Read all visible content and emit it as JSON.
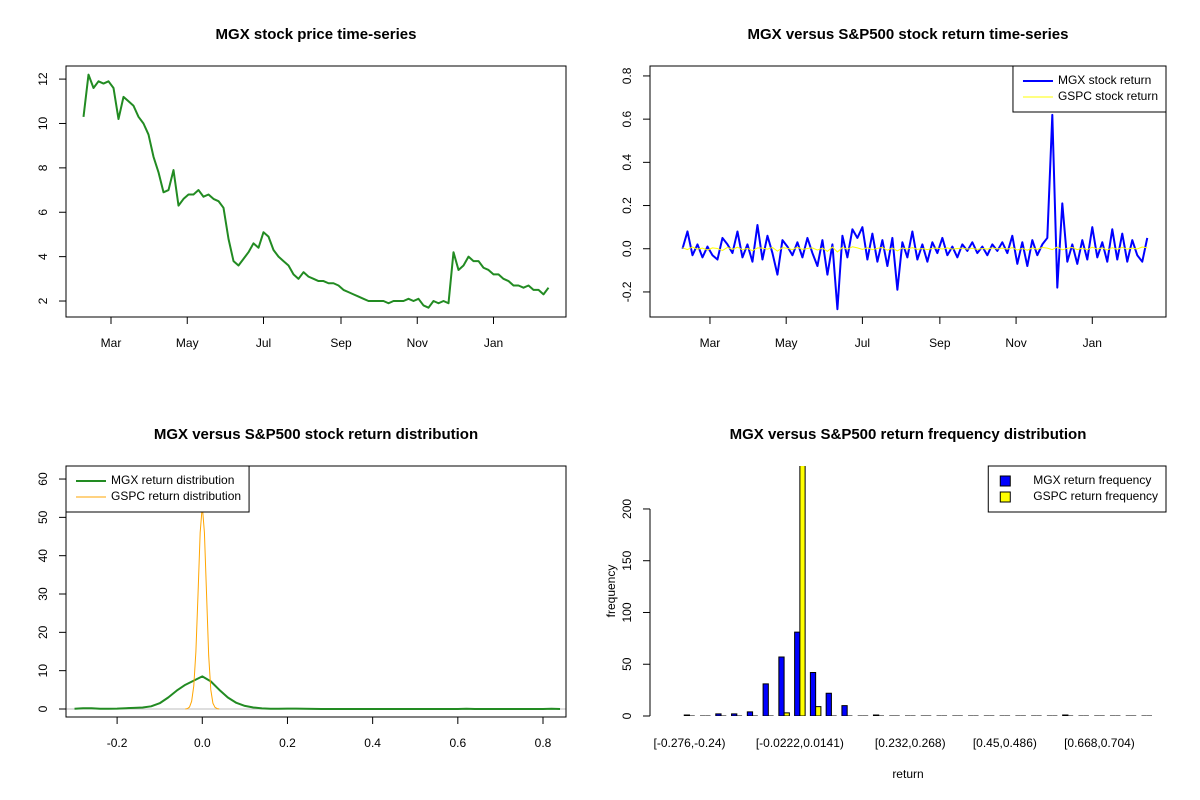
{
  "chart_data": [
    {
      "type": "line",
      "title": "MGX stock price time-series",
      "color": "#228b22",
      "x": [
        -22,
        -18,
        -14,
        -10,
        -6,
        -2,
        2,
        6,
        10,
        14,
        18,
        22,
        26,
        30,
        34,
        38,
        42,
        46,
        50,
        54,
        58,
        62,
        66,
        70,
        74,
        78,
        82,
        86,
        90,
        94,
        98,
        102,
        106,
        110,
        114,
        118,
        122,
        126,
        130,
        134,
        138,
        142,
        146,
        150,
        154,
        158,
        162,
        166,
        170,
        174,
        178,
        182,
        186,
        190,
        194,
        198,
        202,
        206,
        210,
        214,
        218,
        222,
        226,
        230,
        234,
        238,
        242,
        246,
        250,
        254,
        258,
        262,
        266,
        270,
        274,
        278,
        282,
        286,
        290,
        294,
        298,
        302,
        306,
        310,
        314,
        318,
        322,
        326,
        330,
        334,
        338,
        342,
        346,
        350
      ],
      "values": [
        10.3,
        12.2,
        11.6,
        11.9,
        11.8,
        11.9,
        11.6,
        10.2,
        11.2,
        11.0,
        10.8,
        10.3,
        10.0,
        9.5,
        8.5,
        7.8,
        6.9,
        7.0,
        7.9,
        6.3,
        6.6,
        6.8,
        6.8,
        7.0,
        6.7,
        6.8,
        6.6,
        6.5,
        6.2,
        4.8,
        3.8,
        3.6,
        3.9,
        4.2,
        4.6,
        4.4,
        5.1,
        4.9,
        4.3,
        4.0,
        3.8,
        3.6,
        3.2,
        3.0,
        3.3,
        3.1,
        3.0,
        2.9,
        2.9,
        2.8,
        2.8,
        2.7,
        2.5,
        2.4,
        2.3,
        2.2,
        2.1,
        2.0,
        2.0,
        2.0,
        2.0,
        1.9,
        2.0,
        2.0,
        2.0,
        2.1,
        2.0,
        2.1,
        1.8,
        1.7,
        2.0,
        1.9,
        2.0,
        1.9,
        4.2,
        3.4,
        3.6,
        4.0,
        3.8,
        3.8,
        3.5,
        3.4,
        3.2,
        3.2,
        3.0,
        2.9,
        2.7,
        2.7,
        2.6,
        2.7,
        2.5,
        2.5,
        2.3,
        2.6
      ],
      "xlim": [
        -36,
        364
      ],
      "xticks": [
        {
          "value": 0,
          "label": "Mar"
        },
        {
          "value": 61,
          "label": "May"
        },
        {
          "value": 122,
          "label": "Jul"
        },
        {
          "value": 184,
          "label": "Sep"
        },
        {
          "value": 245,
          "label": "Nov"
        },
        {
          "value": 306,
          "label": "Jan"
        }
      ],
      "ylim": [
        1.28,
        12.59
      ],
      "yticks": [
        2,
        4,
        6,
        8,
        10,
        12
      ]
    },
    {
      "type": "line",
      "title": "MGX versus S&P500 stock return time-series",
      "legend": "topright",
      "x": [
        -22,
        -18,
        -14,
        -10,
        -6,
        -2,
        2,
        6,
        10,
        14,
        18,
        22,
        26,
        30,
        34,
        38,
        42,
        46,
        50,
        54,
        58,
        62,
        66,
        70,
        74,
        78,
        82,
        86,
        90,
        94,
        98,
        102,
        106,
        110,
        114,
        118,
        122,
        126,
        130,
        134,
        138,
        142,
        146,
        150,
        154,
        158,
        162,
        166,
        170,
        174,
        178,
        182,
        186,
        190,
        194,
        198,
        202,
        206,
        210,
        214,
        218,
        222,
        226,
        230,
        234,
        238,
        242,
        246,
        250,
        254,
        258,
        262,
        266,
        270,
        274,
        278,
        282,
        286,
        290,
        294,
        298,
        302,
        306,
        310,
        314,
        318,
        322,
        326,
        330,
        334,
        338,
        342,
        346,
        350
      ],
      "series": [
        {
          "name": "MGX stock return",
          "color": "#0000ff",
          "values": [
            0.0,
            0.08,
            -0.03,
            0.02,
            -0.04,
            0.01,
            -0.03,
            -0.05,
            0.05,
            0.02,
            -0.02,
            0.08,
            -0.04,
            0.02,
            -0.06,
            0.11,
            -0.05,
            0.06,
            -0.02,
            -0.12,
            0.04,
            0.01,
            -0.03,
            0.03,
            -0.04,
            0.05,
            -0.02,
            -0.08,
            0.04,
            -0.12,
            0.02,
            -0.28,
            0.06,
            -0.04,
            0.09,
            0.05,
            0.1,
            -0.05,
            0.07,
            -0.06,
            0.04,
            -0.08,
            0.05,
            -0.19,
            0.03,
            -0.04,
            0.08,
            -0.05,
            0.02,
            -0.06,
            0.03,
            -0.02,
            0.05,
            -0.03,
            0.01,
            -0.04,
            0.02,
            -0.01,
            0.03,
            -0.02,
            0.01,
            -0.03,
            0.02,
            -0.01,
            0.03,
            -0.02,
            0.06,
            -0.07,
            0.03,
            -0.08,
            0.04,
            -0.03,
            0.02,
            0.05,
            0.62,
            -0.18,
            0.21,
            -0.06,
            0.02,
            -0.07,
            0.04,
            -0.05,
            0.1,
            -0.04,
            0.03,
            -0.06,
            0.09,
            -0.05,
            0.07,
            -0.06,
            0.04,
            -0.03,
            -0.06,
            0.05
          ]
        },
        {
          "name": "GSPC stock return",
          "color": "#ffff00",
          "values": [
            0.005,
            -0.004,
            0.008,
            -0.002,
            0.003,
            -0.006,
            0.004,
            0.001,
            -0.008,
            0.006,
            -0.003,
            0.007,
            -0.005,
            0.002,
            -0.009,
            0.004,
            0.003,
            -0.002,
            0.006,
            -0.011,
            0.005,
            0.002,
            -0.004,
            0.007,
            -0.003,
            0.001,
            0.004,
            -0.006,
            0.003,
            -0.012,
            0.008,
            -0.015,
            0.006,
            -0.002,
            0.009,
            0.004,
            -0.003,
            0.005,
            -0.004,
            0.002,
            0.006,
            -0.007,
            0.003,
            -0.01,
            0.004,
            -0.002,
            0.005,
            -0.003,
            0.001,
            -0.004,
            0.002,
            0.003,
            -0.001,
            0.004,
            -0.002,
            0.001,
            0.003,
            -0.002,
            0.002,
            -0.003,
            0.001,
            -0.002,
            0.004,
            -0.001,
            0.003,
            -0.002,
            0.005,
            -0.006,
            0.002,
            -0.007,
            0.004,
            -0.003,
            0.006,
            0.003,
            -0.004,
            0.008,
            -0.005,
            0.002,
            0.006,
            -0.004,
            0.003,
            -0.005,
            0.007,
            -0.002,
            0.004,
            -0.006,
            0.005,
            -0.003,
            0.006,
            -0.002,
            0.003,
            -0.001,
            0.008,
            0.004
          ]
        }
      ],
      "xlim": [
        -48,
        365
      ],
      "xticks": [
        {
          "value": 0,
          "label": "Mar"
        },
        {
          "value": 61,
          "label": "May"
        },
        {
          "value": 122,
          "label": "Jul"
        },
        {
          "value": 184,
          "label": "Sep"
        },
        {
          "value": 245,
          "label": "Nov"
        },
        {
          "value": 306,
          "label": "Jan"
        }
      ],
      "ylim": [
        -0.316,
        0.846
      ],
      "yticks": [
        -0.2,
        {
          "value": 0,
          "label": "0.0"
        },
        0.2,
        0.4,
        0.6,
        0.8
      ]
    },
    {
      "type": "line",
      "title": "MGX versus S&P500 stock return distribution",
      "legend": "topleft",
      "series": [
        {
          "name": "MGX return distribution",
          "color": "#228b22",
          "x": [
            -0.3,
            -0.28,
            -0.26,
            -0.24,
            -0.22,
            -0.2,
            -0.18,
            -0.16,
            -0.14,
            -0.12,
            -0.1,
            -0.08,
            -0.06,
            -0.04,
            -0.02,
            0,
            0.02,
            0.04,
            0.06,
            0.08,
            0.1,
            0.12,
            0.14,
            0.16,
            0.18,
            0.2,
            0.22,
            0.24,
            0.26,
            0.28,
            0.3,
            0.32,
            0.34,
            0.36,
            0.38,
            0.4,
            0.42,
            0.44,
            0.46,
            0.48,
            0.5,
            0.52,
            0.54,
            0.56,
            0.58,
            0.6,
            0.62,
            0.64,
            0.66,
            0.68,
            0.7,
            0.72,
            0.74,
            0.76,
            0.78,
            0.8,
            0.82,
            0.84
          ],
          "values": [
            0.05,
            0.2,
            0.2,
            0.05,
            0.05,
            0.1,
            0.2,
            0.3,
            0.4,
            0.7,
            1.5,
            3,
            4.8,
            6.3,
            7.4,
            8.5,
            7.2,
            5,
            3,
            1.6,
            0.8,
            0.4,
            0.15,
            0.05,
            0.05,
            0.1,
            0.1,
            0.05,
            0.02,
            0.01,
            0,
            0,
            0,
            0,
            0,
            0,
            0,
            0,
            0,
            0,
            0,
            0,
            0,
            0,
            0,
            0,
            0.05,
            0,
            0,
            0,
            0,
            0,
            0,
            0,
            0,
            0,
            0.05,
            0
          ]
        },
        {
          "name": "GSPC return distribution",
          "color": "#ffa500",
          "x": [
            -0.04,
            -0.035,
            -0.03,
            -0.025,
            -0.02,
            -0.015,
            -0.01,
            -0.005,
            0,
            0.005,
            0.01,
            0.015,
            0.02,
            0.025,
            0.03,
            0.035,
            0.04
          ],
          "values": [
            0,
            0.1,
            0.5,
            2,
            6,
            15,
            30,
            46,
            53,
            46,
            30,
            14,
            5,
            1.5,
            0.4,
            0.1,
            0
          ]
        }
      ],
      "xlim": [
        -0.32,
        0.854
      ],
      "xticks": [
        -0.2,
        {
          "value": 0,
          "label": "0.0"
        },
        0.2,
        0.4,
        0.6,
        0.8
      ],
      "ylim": [
        -2.09,
        63.4
      ],
      "yticks": [
        0,
        10,
        20,
        30,
        40,
        50,
        60
      ]
    },
    {
      "type": "bar",
      "title": "MGX versus S&P500 return frequency distribution",
      "legend": "topright",
      "xlabel": "return",
      "ylabel": "frequency",
      "categories": [
        "[-0.276,-0.24)",
        null,
        null,
        null,
        null,
        null,
        null,
        "[-0.0222,0.0141)",
        null,
        null,
        null,
        null,
        null,
        null,
        "[0.232,0.268)",
        null,
        null,
        null,
        null,
        null,
        "[0.45,0.486)",
        null,
        null,
        null,
        null,
        null,
        "[0.668,0.704)",
        null,
        null,
        null
      ],
      "series": [
        {
          "name": "MGX return frequency",
          "color": "#0000ff",
          "values": [
            1,
            0,
            2,
            2,
            4,
            31,
            57,
            81,
            42,
            22,
            10,
            0,
            1,
            0,
            0,
            0,
            0,
            0,
            0,
            0,
            0,
            0,
            0,
            0,
            1,
            0,
            0,
            0,
            0,
            0
          ]
        },
        {
          "name": "GSPC return frequency",
          "color": "#ffff00",
          "values": [
            0,
            0,
            0,
            0,
            0,
            0,
            3,
            242,
            9,
            0,
            0,
            0,
            0,
            0,
            0,
            0,
            0,
            0,
            0,
            0,
            0,
            0,
            0,
            0,
            0,
            0,
            0,
            0,
            0,
            0
          ]
        }
      ],
      "ylim": [
        0,
        241.5
      ],
      "yticks": [
        0,
        50,
        100,
        150,
        200
      ]
    }
  ]
}
